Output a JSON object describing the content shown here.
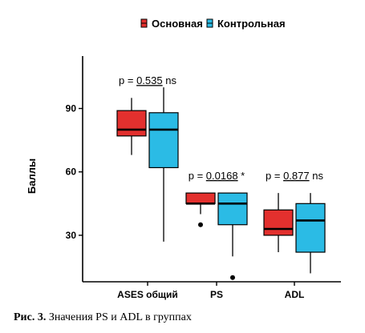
{
  "chart_data": {
    "type": "box",
    "legend": {
      "placement": "top",
      "entries": [
        {
          "name": "Основная",
          "color": "#e3302e"
        },
        {
          "name": "Контрольная",
          "color": "#2bbbe5"
        }
      ]
    },
    "ylabel": "Баллы",
    "xlabel": "",
    "ylim": [
      8,
      108
    ],
    "yticks": [
      30,
      60,
      90
    ],
    "grid": false,
    "categories": [
      "ASES общий",
      "PS",
      "ADL"
    ],
    "series": [
      {
        "name": "Основная",
        "color": "#e3302e",
        "boxes": [
          {
            "min": 68,
            "q1": 77,
            "median": 80,
            "q3": 89,
            "max": 95,
            "outliers": []
          },
          {
            "min": 40,
            "q1": 45,
            "median": 45,
            "q3": 50,
            "max": 50,
            "outliers": [
              35
            ]
          },
          {
            "min": 22,
            "q1": 30,
            "median": 33,
            "q3": 42,
            "max": 50,
            "outliers": []
          }
        ]
      },
      {
        "name": "Контрольная",
        "color": "#2bbbe5",
        "boxes": [
          {
            "min": 27,
            "q1": 62,
            "median": 80,
            "q3": 88,
            "max": 100,
            "outliers": []
          },
          {
            "min": 20,
            "q1": 35,
            "median": 45,
            "q3": 50,
            "max": 50,
            "outliers": [
              10
            ]
          },
          {
            "min": 12,
            "q1": 22,
            "median": 37,
            "q3": 45,
            "max": 50,
            "outliers": []
          }
        ]
      }
    ],
    "annotations": [
      {
        "category": "ASES общий",
        "text_prefix": "p = ",
        "value": "0.535",
        "suffix": " ns",
        "y": 103
      },
      {
        "category": "PS",
        "text_prefix": "p = ",
        "value": "0.0168",
        "suffix": " *",
        "y": 58
      },
      {
        "category": "ADL",
        "text_prefix": "p = ",
        "value": "0.877",
        "suffix": " ns",
        "y": 58
      }
    ]
  },
  "caption": {
    "label": "Рис. 3.",
    "text": " Значения PS и ADL в группах"
  }
}
